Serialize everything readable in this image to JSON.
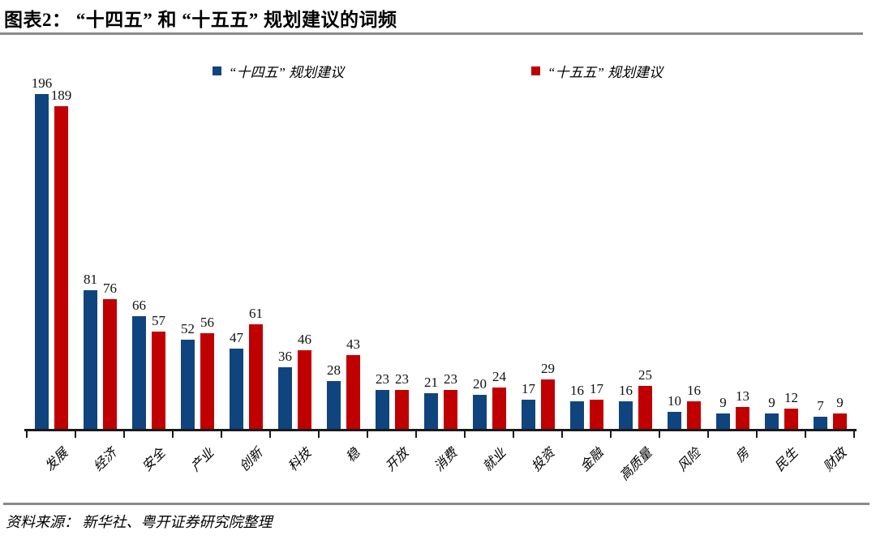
{
  "title": "图表2： “十四五” 和 “十五五” 规划建议的词频",
  "legend": {
    "items": [
      {
        "label": "“十四五” 规划建议",
        "color": "#10447E"
      },
      {
        "label": "“十五五” 规划建议",
        "color": "#C00000"
      }
    ]
  },
  "source": "资料来源： 新华社、粤开证券研究院整理",
  "colors": {
    "series_blue": "#10447E",
    "series_red": "#C00000",
    "axis": "#1A1A1A",
    "divider_gray": "#8A8A8A",
    "background": "#FFFFFF"
  },
  "chart_data": {
    "type": "bar",
    "title": "“十四五” 和 “十五五” 规划建议的词频",
    "categories": [
      "发展",
      "经济",
      "安全",
      "产业",
      "创新",
      "科技",
      "稳",
      "开放",
      "消费",
      "就业",
      "投资",
      "金融",
      "高质量",
      "风险",
      "房",
      "民生",
      "财政"
    ],
    "series": [
      {
        "name": "“十四五” 规划建议",
        "color": "#10447E",
        "values": [
          196,
          81,
          66,
          52,
          47,
          36,
          28,
          23,
          21,
          20,
          17,
          16,
          16,
          10,
          9,
          9,
          7
        ]
      },
      {
        "name": "“十五五” 规划建议",
        "color": "#C00000",
        "values": [
          189,
          76,
          57,
          56,
          61,
          46,
          43,
          23,
          23,
          24,
          29,
          17,
          25,
          16,
          13,
          12,
          9
        ]
      }
    ],
    "xlabel": "",
    "ylabel": "",
    "ylim": [
      0,
      200
    ],
    "grid": false,
    "legend_position": "top",
    "value_labels": true
  }
}
